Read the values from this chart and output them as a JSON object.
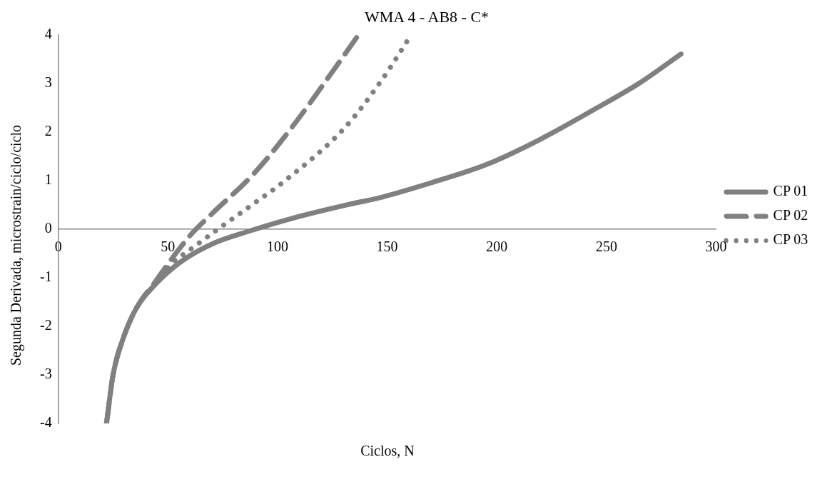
{
  "chart_data": {
    "type": "line",
    "title": "WMA 4 - AB8 - C*",
    "xlabel": "Ciclos, N",
    "ylabel": "Segunda Derivada, microstrain/ciclo/ciclo",
    "xlim": [
      0,
      300
    ],
    "ylim": [
      -4,
      4
    ],
    "xticks": [
      0,
      50,
      100,
      150,
      200,
      250,
      300
    ],
    "yticks": [
      -4,
      -3,
      -2,
      -1,
      0,
      1,
      2,
      3,
      4
    ],
    "legend": "right",
    "marker": "none",
    "series": [
      {
        "name": "CP 01",
        "color": "#808080",
        "line_style": "solid",
        "x": [
          22,
          25,
          30,
          36,
          44,
          56,
          71,
          88,
          107.5,
          132,
          148,
          170,
          196,
          220,
          246,
          265,
          284
        ],
        "values": [
          -4,
          -3,
          -2.2,
          -1.6,
          -1.15,
          -0.67,
          -0.29,
          -0.03,
          0.23,
          0.5,
          0.66,
          0.95,
          1.34,
          1.85,
          2.5,
          3,
          3.6
        ]
      },
      {
        "name": "CP 02",
        "color": "#808080",
        "line_style": "dashed",
        "x": [
          22,
          25,
          30,
          36,
          44,
          52,
          60,
          70,
          89,
          105,
          127,
          137
        ],
        "values": [
          -4,
          -3,
          -2.2,
          -1.6,
          -1.1,
          -0.6,
          -0.14,
          0.31,
          1.13,
          2,
          3.36,
          4
        ]
      },
      {
        "name": "CP 03",
        "color": "#808080",
        "line_style": "dotted",
        "x": [
          22,
          25,
          30,
          36,
          44,
          52,
          60,
          72,
          90,
          103,
          131,
          149,
          161
        ],
        "values": [
          -4,
          -3,
          -2.2,
          -1.6,
          -1.15,
          -0.7,
          -0.43,
          -0.03,
          0.55,
          0.98,
          2.1,
          3.16,
          4
        ]
      }
    ]
  }
}
